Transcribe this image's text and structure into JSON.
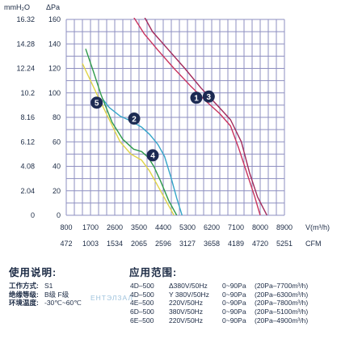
{
  "chart_data": {
    "type": "line",
    "axes": {
      "left_title_1": "mmH₂O",
      "left_title_2": "ΔPa",
      "x_title_1": "V(m³/h)",
      "x_title_2": "CFM",
      "mmh2o_ticks": [
        "16.32",
        "14.28",
        "12.24",
        "10.2",
        "8.16",
        "6.12",
        "4.08",
        "2.04",
        "0"
      ],
      "pa_ticks": [
        "160",
        "140",
        "120",
        "100",
        "80",
        "60",
        "40",
        "20",
        "0"
      ],
      "v_ticks": [
        "800",
        "1700",
        "2600",
        "3500",
        "4400",
        "5300",
        "6200",
        "7100",
        "8000",
        "8900"
      ],
      "cfm_ticks": [
        "472",
        "1003",
        "1534",
        "2065",
        "2596",
        "3127",
        "3658",
        "4189",
        "4720",
        "5251"
      ],
      "xlim": [
        800,
        8900
      ],
      "ylim": [
        0,
        160
      ]
    },
    "grid": true,
    "series": [
      {
        "name": "1",
        "color": "#c9335e",
        "points": [
          [
            3300,
            162
          ],
          [
            3700,
            148
          ],
          [
            4200,
            135
          ],
          [
            4800,
            120
          ],
          [
            5400,
            106
          ],
          [
            6000,
            93
          ],
          [
            6500,
            83
          ],
          [
            6900,
            73
          ],
          [
            7200,
            55
          ],
          [
            7500,
            35
          ],
          [
            7800,
            15
          ],
          [
            8000,
            0
          ]
        ]
      },
      {
        "name": "2",
        "color": "#33a5c8",
        "points": [
          [
            2150,
            95
          ],
          [
            2400,
            88
          ],
          [
            2800,
            81
          ],
          [
            3200,
            77
          ],
          [
            3600,
            72
          ],
          [
            3900,
            66
          ],
          [
            4200,
            58
          ],
          [
            4450,
            48
          ],
          [
            4700,
            30
          ],
          [
            4900,
            14
          ],
          [
            5100,
            0
          ]
        ]
      },
      {
        "name": "3",
        "color": "#a22a5b",
        "points": [
          [
            3700,
            162
          ],
          [
            4000,
            150
          ],
          [
            4600,
            135
          ],
          [
            5200,
            120
          ],
          [
            5800,
            104
          ],
          [
            6400,
            90
          ],
          [
            6900,
            78
          ],
          [
            7300,
            60
          ],
          [
            7600,
            35
          ],
          [
            7900,
            15
          ],
          [
            8250,
            0
          ]
        ]
      },
      {
        "name": "4",
        "color": "#2e9a4a",
        "points": [
          [
            1520,
            136
          ],
          [
            1800,
            118
          ],
          [
            2100,
            98
          ],
          [
            2500,
            76
          ],
          [
            2900,
            62
          ],
          [
            3300,
            54
          ],
          [
            3600,
            52
          ],
          [
            3850,
            47
          ],
          [
            4050,
            40
          ],
          [
            4300,
            28
          ],
          [
            4600,
            12
          ],
          [
            4900,
            0
          ]
        ]
      },
      {
        "name": "5",
        "color": "#e0d447",
        "points": [
          [
            1400,
            124
          ],
          [
            1700,
            110
          ],
          [
            2000,
            96
          ],
          [
            2400,
            78
          ],
          [
            2800,
            60
          ],
          [
            3200,
            50
          ],
          [
            3600,
            45
          ],
          [
            3900,
            36
          ],
          [
            4200,
            24
          ],
          [
            4500,
            12
          ],
          [
            4800,
            0
          ]
        ]
      }
    ],
    "markers": [
      {
        "label": "1",
        "x": 5630,
        "y": 96
      },
      {
        "label": "2",
        "x": 3320,
        "y": 79
      },
      {
        "label": "3",
        "x": 6090,
        "y": 97
      },
      {
        "label": "4",
        "x": 4010,
        "y": 49
      },
      {
        "label": "5",
        "x": 1930,
        "y": 92
      }
    ]
  },
  "usage": {
    "heading": "使用说明:",
    "rows": [
      {
        "label": "工作方式:",
        "value": "S1"
      },
      {
        "label": "绝缘等级:",
        "value": "B级  F级"
      },
      {
        "label": "环境温度:",
        "value": "-30℃~60℃"
      }
    ]
  },
  "application": {
    "heading": "应用范围:",
    "models": [
      {
        "code": "4D–500",
        "volt": "Δ380V/50Hz",
        "pa": "0~90Pa",
        "flow": "(20Pa–7700m³/h)"
      },
      {
        "code": "4D–500",
        "volt": "Y 380V/50Hz",
        "pa": "0~90Pa",
        "flow": "(20Pa–6300m³/h)"
      },
      {
        "code": "4E–500",
        "volt": "220V/50Hz",
        "pa": "0~90Pa",
        "flow": "(20Pa–7800m³/h)"
      },
      {
        "code": "6D–500",
        "volt": "380V/50Hz",
        "pa": "0~90Pa",
        "flow": "(20Pa–5100m³/h)"
      },
      {
        "code": "6E–500",
        "volt": "220V/50Hz",
        "pa": "0~90Pa",
        "flow": "(20Pa–4900m³/h)"
      }
    ]
  },
  "watermark": "ЕНТЭЛЗАЛ"
}
